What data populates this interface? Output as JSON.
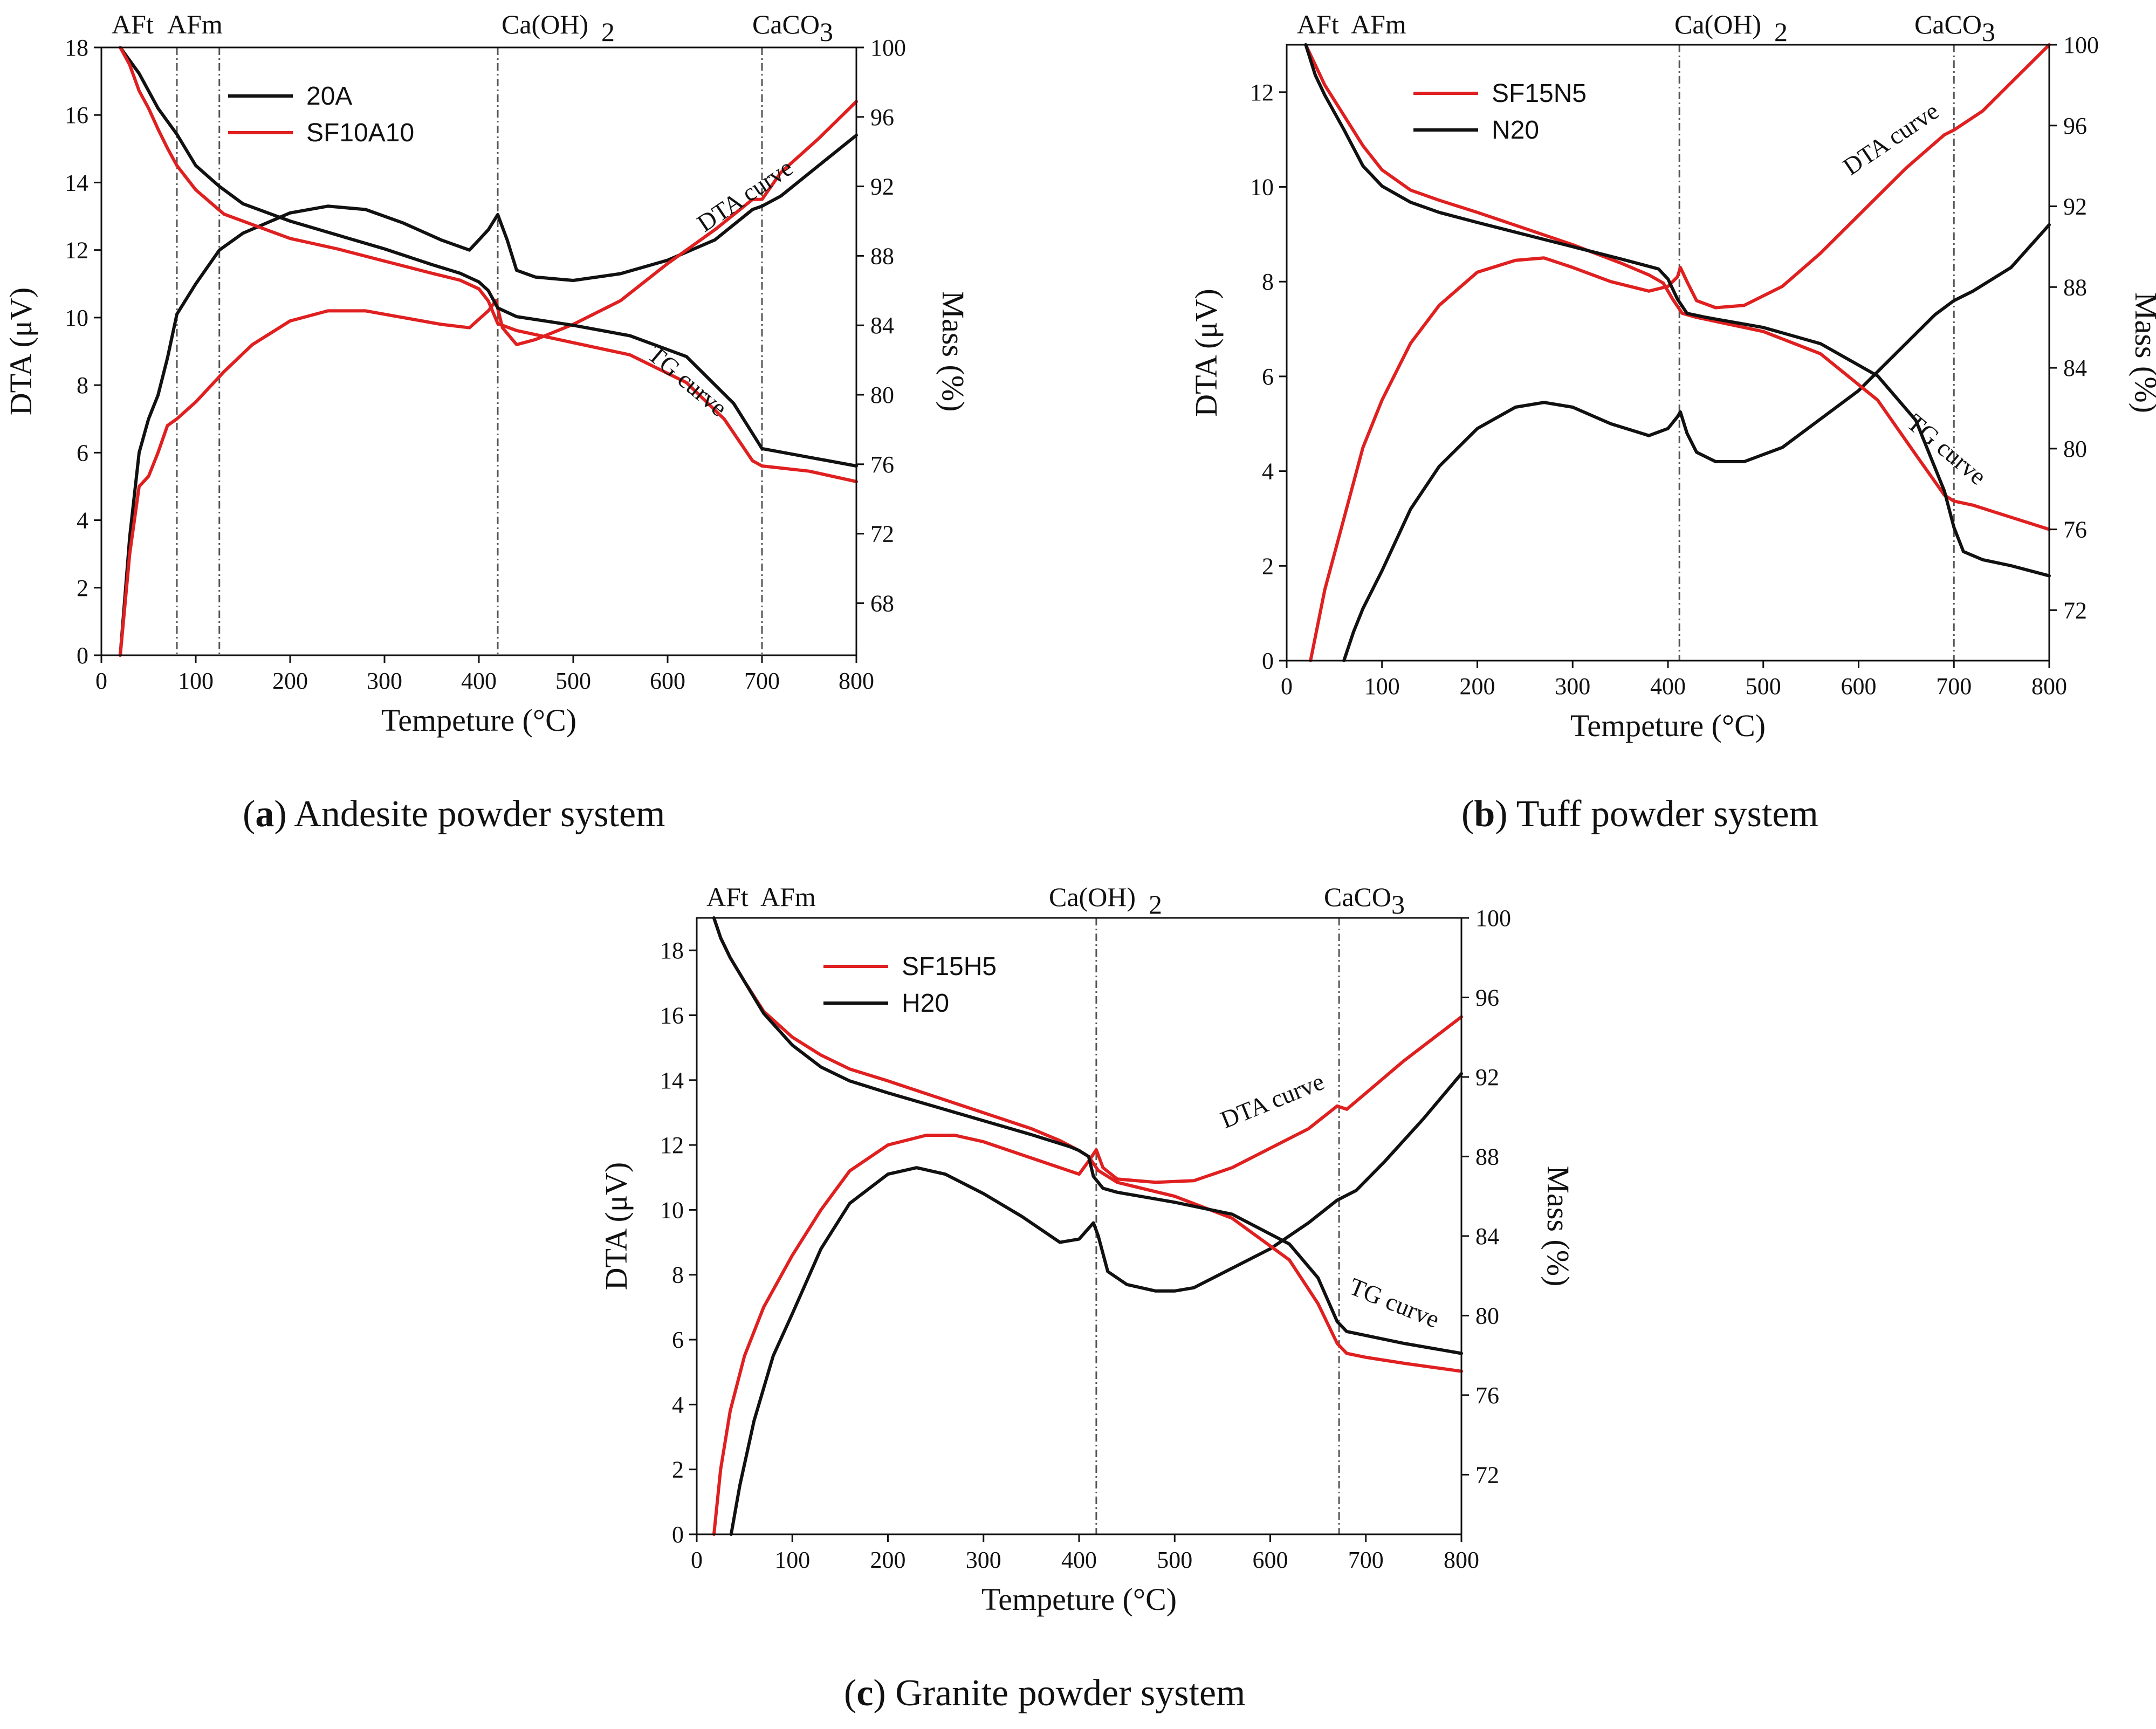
{
  "colors": {
    "red": "#e02020",
    "black": "#111111",
    "guide": "#555555"
  },
  "chart_data": [
    {
      "id": "a",
      "type": "line",
      "caption_letter": "a",
      "caption_text": "Andesite powder system",
      "xlabel": "Tempeture (°C)",
      "ylabel": "DTA (μV)",
      "y2label": "Mass (%)",
      "xlim": [
        0,
        800
      ],
      "ylim": [
        0,
        18
      ],
      "y2lim": [
        65,
        100
      ],
      "xticks": [
        0,
        100,
        200,
        300,
        400,
        500,
        600,
        700,
        800
      ],
      "yticks": [
        0,
        2,
        4,
        6,
        8,
        10,
        12,
        14,
        16,
        18
      ],
      "y2ticks": [
        68,
        72,
        76,
        80,
        84,
        88,
        92,
        96,
        100
      ],
      "annotations": [
        "AFt",
        "AFm",
        "Ca(OH)",
        "2",
        "CaCO",
        "3"
      ],
      "vlines": [
        80,
        125,
        420,
        700
      ],
      "curve_labels": [
        "DTA curve",
        "TG curve"
      ],
      "legend": {
        "placement": "top-left",
        "entries": [
          {
            "name": "20A",
            "color": "#111111"
          },
          {
            "name": "SF10A10",
            "color": "#e02020"
          }
        ]
      },
      "series": [
        {
          "name": "20A",
          "kind": "DTA",
          "axis": "left",
          "color": "#111111",
          "x": [
            20,
            30,
            40,
            50,
            60,
            70,
            80,
            100,
            125,
            150,
            200,
            240,
            280,
            320,
            360,
            390,
            410,
            420,
            430,
            440,
            460,
            500,
            550,
            600,
            650,
            690,
            700,
            720,
            760,
            800
          ],
          "y": [
            0,
            3.5,
            6,
            7,
            7.7,
            8.8,
            10.1,
            11,
            12,
            12.5,
            13.1,
            13.3,
            13.2,
            12.8,
            12.3,
            12,
            12.6,
            13.05,
            12.3,
            11.4,
            11.2,
            11.1,
            11.3,
            11.7,
            12.3,
            13.2,
            13.3,
            13.6,
            14.5,
            15.4
          ]
        },
        {
          "name": "SF10A10",
          "kind": "DTA",
          "axis": "left",
          "color": "#e02020",
          "x": [
            20,
            30,
            40,
            50,
            60,
            70,
            80,
            100,
            130,
            160,
            200,
            240,
            280,
            320,
            360,
            390,
            410,
            418,
            425,
            440,
            460,
            500,
            550,
            600,
            650,
            690,
            700,
            720,
            760,
            800
          ],
          "y": [
            0,
            3,
            5,
            5.3,
            6,
            6.8,
            7,
            7.5,
            8.4,
            9.2,
            9.9,
            10.2,
            10.2,
            10,
            9.8,
            9.7,
            10.2,
            10.5,
            9.7,
            9.2,
            9.35,
            9.8,
            10.5,
            11.6,
            12.6,
            13.5,
            13.5,
            14.3,
            15.3,
            16.4
          ]
        },
        {
          "name": "20A",
          "kind": "TG",
          "axis": "right",
          "color": "#111111",
          "x": [
            20,
            40,
            60,
            80,
            100,
            125,
            150,
            200,
            250,
            300,
            350,
            380,
            400,
            410,
            420,
            440,
            500,
            560,
            620,
            670,
            700,
            750,
            800
          ],
          "y": [
            100,
            98.5,
            96.5,
            95,
            93.2,
            92,
            91,
            90,
            89.2,
            88.4,
            87.5,
            87,
            86.5,
            86,
            85,
            84.5,
            84,
            83.4,
            82.2,
            79.5,
            76.9,
            76.4,
            75.9
          ]
        },
        {
          "name": "SF10A10",
          "kind": "TG",
          "axis": "right",
          "color": "#e02020",
          "x": [
            20,
            30,
            40,
            50,
            60,
            70,
            80,
            100,
            130,
            160,
            200,
            250,
            300,
            350,
            380,
            400,
            410,
            420,
            440,
            500,
            560,
            620,
            660,
            690,
            700,
            750,
            800
          ],
          "y": [
            100,
            99,
            97.5,
            96.5,
            95.3,
            94.2,
            93.2,
            91.8,
            90.4,
            89.8,
            89,
            88.4,
            87.7,
            87,
            86.6,
            86.1,
            85.4,
            84.1,
            83.7,
            83,
            82.3,
            80.7,
            78.6,
            76.2,
            75.9,
            75.6,
            75
          ]
        }
      ]
    },
    {
      "id": "b",
      "type": "line",
      "caption_letter": "b",
      "caption_text": "Tuff powder system",
      "xlabel": "Tempeture (°C)",
      "ylabel": "DTA (μV)",
      "y2label": "Mass (%)",
      "xlim": [
        0,
        800
      ],
      "ylim": [
        0,
        13
      ],
      "y2lim": [
        69.5,
        100
      ],
      "xticks": [
        0,
        100,
        200,
        300,
        400,
        500,
        600,
        700,
        800
      ],
      "yticks": [
        0,
        2,
        4,
        6,
        8,
        10,
        12
      ],
      "y2ticks": [
        72,
        76,
        80,
        84,
        88,
        92,
        96,
        100
      ],
      "annotations": [
        "AFt",
        "AFm",
        "Ca(OH)",
        "2",
        "CaCO",
        "3"
      ],
      "vlines": [
        412,
        700
      ],
      "curve_labels": [
        "DTA curve",
        "TG curve"
      ],
      "legend": {
        "placement": "top-left",
        "entries": [
          {
            "name": "SF15N5",
            "color": "#e02020"
          },
          {
            "name": "N20",
            "color": "#111111"
          }
        ]
      },
      "series": [
        {
          "name": "SF15N5",
          "kind": "DTA",
          "axis": "left",
          "color": "#e02020",
          "x": [
            25,
            40,
            60,
            80,
            100,
            130,
            160,
            200,
            240,
            270,
            300,
            340,
            380,
            400,
            410,
            413,
            420,
            430,
            450,
            480,
            520,
            560,
            600,
            650,
            690,
            700,
            730,
            760,
            800
          ],
          "y": [
            0,
            1.5,
            3,
            4.5,
            5.5,
            6.7,
            7.5,
            8.2,
            8.45,
            8.5,
            8.3,
            8,
            7.8,
            7.9,
            8.1,
            8.3,
            8,
            7.6,
            7.45,
            7.5,
            7.9,
            8.6,
            9.4,
            10.4,
            11.1,
            11.2,
            11.6,
            12.2,
            13
          ]
        },
        {
          "name": "N20",
          "kind": "DTA",
          "axis": "left",
          "color": "#111111",
          "x": [
            60,
            70,
            80,
            100,
            130,
            160,
            200,
            240,
            270,
            300,
            340,
            380,
            400,
            410,
            413,
            420,
            430,
            450,
            480,
            520,
            560,
            600,
            640,
            680,
            700,
            720,
            760,
            800
          ],
          "y": [
            0,
            0.6,
            1.1,
            1.9,
            3.2,
            4.1,
            4.9,
            5.35,
            5.45,
            5.35,
            5,
            4.75,
            4.9,
            5.15,
            5.25,
            4.8,
            4.4,
            4.2,
            4.2,
            4.5,
            5.1,
            5.7,
            6.5,
            7.3,
            7.6,
            7.8,
            8.3,
            9.2
          ]
        },
        {
          "name": "SF15N5",
          "kind": "TG",
          "axis": "right",
          "color": "#e02020",
          "x": [
            20,
            30,
            40,
            60,
            80,
            100,
            130,
            160,
            200,
            250,
            300,
            350,
            380,
            395,
            405,
            415,
            430,
            500,
            560,
            620,
            660,
            690,
            700,
            720,
            760,
            800
          ],
          "y": [
            100,
            99,
            98,
            96.5,
            95,
            93.8,
            92.8,
            92.3,
            91.7,
            90.9,
            90.1,
            89.2,
            88.6,
            88.2,
            87.4,
            86.7,
            86.5,
            85.8,
            84.7,
            82.4,
            79.7,
            77.7,
            77.4,
            77.2,
            76.6,
            76
          ]
        },
        {
          "name": "N20",
          "kind": "TG",
          "axis": "right",
          "color": "#111111",
          "x": [
            20,
            30,
            40,
            60,
            80,
            100,
            130,
            160,
            200,
            250,
            300,
            350,
            390,
            400,
            410,
            420,
            440,
            500,
            560,
            620,
            660,
            690,
            700,
            710,
            730,
            760,
            800
          ],
          "y": [
            100,
            98.5,
            97.5,
            95.8,
            94,
            93,
            92.2,
            91.7,
            91.2,
            90.6,
            90,
            89.4,
            88.9,
            88.4,
            87.4,
            86.7,
            86.5,
            86,
            85.2,
            83.6,
            81.4,
            77.9,
            76.1,
            74.9,
            74.5,
            74.2,
            73.7
          ]
        }
      ]
    },
    {
      "id": "c",
      "type": "line",
      "caption_letter": "c",
      "caption_text": "Granite powder system",
      "xlabel": "Tempeture (°C)",
      "ylabel": "DTA (μV)",
      "y2label": "Mass (%)",
      "xlim": [
        0,
        800
      ],
      "ylim": [
        0,
        19
      ],
      "y2lim": [
        69,
        100
      ],
      "xticks": [
        0,
        100,
        200,
        300,
        400,
        500,
        600,
        700,
        800
      ],
      "yticks": [
        0,
        2,
        4,
        6,
        8,
        10,
        12,
        14,
        16,
        18
      ],
      "y2ticks": [
        72,
        76,
        80,
        84,
        88,
        92,
        96,
        100
      ],
      "annotations": [
        "AFt",
        "AFm",
        "Ca(OH)",
        "2",
        "CaCO",
        "3"
      ],
      "vlines": [
        418,
        672
      ],
      "curve_labels": [
        "DTA curve",
        "TG curve"
      ],
      "legend": {
        "placement": "top-left",
        "entries": [
          {
            "name": "SF15H5",
            "color": "#e02020"
          },
          {
            "name": "H20",
            "color": "#111111"
          }
        ]
      },
      "series": [
        {
          "name": "SF15H5",
          "kind": "DTA",
          "axis": "left",
          "color": "#e02020",
          "x": [
            18,
            25,
            35,
            50,
            70,
            100,
            130,
            160,
            200,
            240,
            270,
            300,
            340,
            380,
            400,
            410,
            418,
            425,
            440,
            480,
            520,
            560,
            600,
            640,
            670,
            680,
            700,
            740,
            800
          ],
          "y": [
            0,
            2,
            3.8,
            5.5,
            7,
            8.6,
            10,
            11.2,
            12,
            12.3,
            12.3,
            12.1,
            11.7,
            11.3,
            11.1,
            11.5,
            11.85,
            11.3,
            10.95,
            10.85,
            10.9,
            11.3,
            11.9,
            12.5,
            13.2,
            13.1,
            13.6,
            14.6,
            15.95
          ]
        },
        {
          "name": "H20",
          "kind": "DTA",
          "axis": "left",
          "color": "#111111",
          "x": [
            36,
            45,
            60,
            80,
            100,
            130,
            160,
            200,
            230,
            260,
            300,
            340,
            380,
            400,
            415,
            420,
            430,
            450,
            480,
            500,
            520,
            560,
            600,
            640,
            670,
            690,
            720,
            760,
            800
          ],
          "y": [
            0,
            1.5,
            3.5,
            5.5,
            6.8,
            8.8,
            10.2,
            11.1,
            11.3,
            11.1,
            10.5,
            9.8,
            9,
            9.1,
            9.6,
            9.2,
            8.1,
            7.7,
            7.5,
            7.5,
            7.6,
            8.2,
            8.8,
            9.6,
            10.3,
            10.6,
            11.5,
            12.8,
            14.2
          ]
        },
        {
          "name": "SF15H5",
          "kind": "TG",
          "axis": "right",
          "color": "#e02020",
          "x": [
            18,
            25,
            35,
            50,
            70,
            100,
            130,
            160,
            200,
            250,
            300,
            350,
            380,
            400,
            410,
            420,
            440,
            500,
            560,
            620,
            650,
            670,
            680,
            700,
            740,
            800
          ],
          "y": [
            100,
            99,
            98,
            96.8,
            95.3,
            94,
            93.1,
            92.4,
            91.8,
            91,
            90.2,
            89.4,
            88.8,
            88.3,
            88,
            87.3,
            86.7,
            86,
            84.9,
            82.8,
            80.6,
            78.6,
            78.1,
            77.9,
            77.6,
            77.2
          ]
        },
        {
          "name": "H20",
          "kind": "TG",
          "axis": "right",
          "color": "#111111",
          "x": [
            18,
            25,
            35,
            50,
            70,
            100,
            130,
            160,
            200,
            250,
            300,
            350,
            390,
            400,
            410,
            415,
            425,
            440,
            500,
            560,
            620,
            650,
            670,
            680,
            700,
            740,
            800
          ],
          "y": [
            100,
            99,
            98,
            96.8,
            95.2,
            93.6,
            92.5,
            91.8,
            91.2,
            90.5,
            89.8,
            89.1,
            88.5,
            88.3,
            88,
            87,
            86.4,
            86.2,
            85.7,
            85.1,
            83.6,
            81.9,
            79.7,
            79.2,
            79,
            78.6,
            78.1
          ]
        }
      ]
    }
  ]
}
